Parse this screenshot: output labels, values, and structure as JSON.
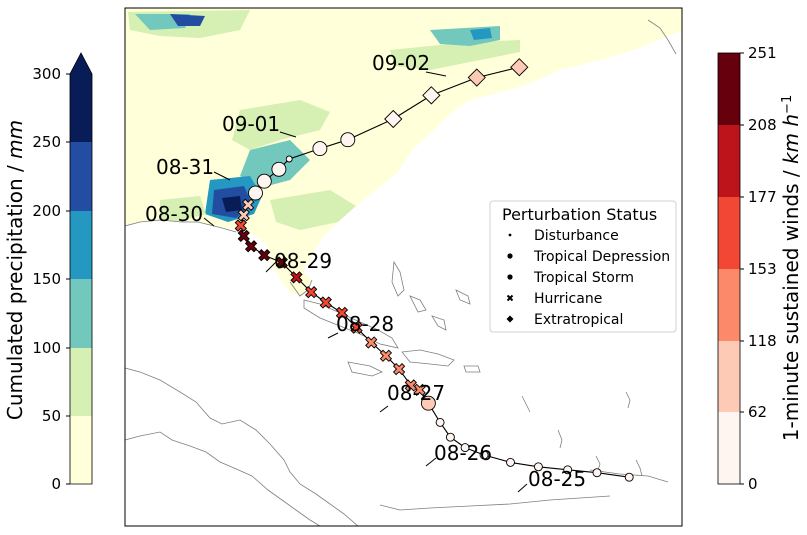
{
  "colors": {
    "precip": [
      "#ffffd9",
      "#d6efb3",
      "#73c8bd",
      "#2498c1",
      "#234da0",
      "#081d58"
    ],
    "wind": [
      "#fff5f0",
      "#fdcab5",
      "#fc8a6a",
      "#f24734",
      "#bc141a",
      "#67000d"
    ],
    "land": "#ffffd9",
    "ocean": "#ffffff",
    "track": "#000000"
  },
  "precip_colorbar": {
    "label": "Cumulated precipitation / mm",
    "label_plain": "Cumulated precipitation / ",
    "label_unit": "mm",
    "ticks": [
      "0",
      "50",
      "100",
      "150",
      "200",
      "250",
      "300"
    ],
    "bounds": [
      0,
      50,
      100,
      150,
      200,
      250,
      300
    ],
    "extend": "max"
  },
  "wind_colorbar": {
    "label": "1-minute sustained winds / km h^-1",
    "label_plain": "1-minute sustained winds / ",
    "label_unit_km": "km h",
    "label_unit_exp": "−1",
    "ticks": [
      "0",
      "62",
      "118",
      "153",
      "177",
      "208",
      "251"
    ],
    "bounds": [
      0,
      62,
      118,
      153,
      177,
      208,
      251
    ]
  },
  "legend": {
    "title": "Perturbation Status",
    "items": [
      {
        "label": "Disturbance",
        "marker": "small-dot"
      },
      {
        "label": "Tropical Depression",
        "marker": "dot"
      },
      {
        "label": "Tropical Storm",
        "marker": "dot"
      },
      {
        "label": "Hurricane",
        "marker": "x"
      },
      {
        "label": "Extratropical",
        "marker": "diamond"
      }
    ]
  },
  "date_labels": [
    "08-25",
    "08-26",
    "08-27",
    "08-28",
    "08-29",
    "08-30",
    "08-31",
    "09-01",
    "09-02"
  ],
  "track": [
    {
      "lon": -60.6,
      "lat": 13.3,
      "status": "Tropical Depression",
      "wind_kmh": 55
    },
    {
      "lon": -62.8,
      "lat": 13.6,
      "status": "Tropical Depression",
      "wind_kmh": 55
    },
    {
      "lon": -64.8,
      "lat": 13.8,
      "status": "Tropical Depression",
      "wind_kmh": 55
    },
    {
      "lon": -66.8,
      "lat": 14.0,
      "status": "Tropical Depression",
      "wind_kmh": 55
    },
    {
      "lon": -68.7,
      "lat": 14.3,
      "status": "Tropical Depression",
      "wind_kmh": 55
    },
    {
      "lon": -70.5,
      "lat": 14.8,
      "status": "Tropical Depression",
      "wind_kmh": 55
    },
    {
      "lon": -71.8,
      "lat": 15.3,
      "status": "Tropical Depression",
      "wind_kmh": 55
    },
    {
      "lon": -72.8,
      "lat": 16.0,
      "status": "Tropical Depression",
      "wind_kmh": 55
    },
    {
      "lon": -73.5,
      "lat": 17.0,
      "status": "Tropical Depression",
      "wind_kmh": 55
    },
    {
      "lon": -74.3,
      "lat": 18.3,
      "status": "Tropical Storm",
      "wind_kmh": 100
    },
    {
      "lon": -74.9,
      "lat": 19.2,
      "status": "Hurricane",
      "wind_kmh": 120
    },
    {
      "lon": -75.5,
      "lat": 19.5,
      "status": "Hurricane",
      "wind_kmh": 120
    },
    {
      "lon": -76.3,
      "lat": 20.6,
      "status": "Hurricane",
      "wind_kmh": 120
    },
    {
      "lon": -77.2,
      "lat": 21.5,
      "status": "Hurricane",
      "wind_kmh": 140
    },
    {
      "lon": -78.2,
      "lat": 22.4,
      "status": "Hurricane",
      "wind_kmh": 140
    },
    {
      "lon": -79.2,
      "lat": 23.4,
      "status": "Hurricane",
      "wind_kmh": 160
    },
    {
      "lon": -80.2,
      "lat": 24.4,
      "status": "Hurricane",
      "wind_kmh": 160
    },
    {
      "lon": -81.3,
      "lat": 25.1,
      "status": "Hurricane",
      "wind_kmh": 170
    },
    {
      "lon": -82.3,
      "lat": 25.8,
      "status": "Hurricane",
      "wind_kmh": 170
    },
    {
      "lon": -83.3,
      "lat": 26.8,
      "status": "Hurricane",
      "wind_kmh": 180
    },
    {
      "lon": -84.3,
      "lat": 27.8,
      "status": "Hurricane",
      "wind_kmh": 220
    },
    {
      "lon": -85.5,
      "lat": 28.3,
      "status": "Hurricane",
      "wind_kmh": 230
    },
    {
      "lon": -86.4,
      "lat": 28.9,
      "status": "Hurricane",
      "wind_kmh": 250
    },
    {
      "lon": -86.9,
      "lat": 29.6,
      "status": "Hurricane",
      "wind_kmh": 240
    },
    {
      "lon": -87.1,
      "lat": 30.3,
      "status": "Hurricane",
      "wind_kmh": 160
    },
    {
      "lon": -86.9,
      "lat": 31.0,
      "status": "Hurricane",
      "wind_kmh": 110
    },
    {
      "lon": -86.6,
      "lat": 31.7,
      "status": "Hurricane",
      "wind_kmh": 80
    },
    {
      "lon": -86.1,
      "lat": 32.5,
      "status": "Tropical Storm",
      "wind_kmh": 60
    },
    {
      "lon": -85.5,
      "lat": 33.3,
      "status": "Tropical Storm",
      "wind_kmh": 55
    },
    {
      "lon": -84.5,
      "lat": 34.1,
      "status": "Tropical Storm",
      "wind_kmh": 50
    },
    {
      "lon": -83.8,
      "lat": 34.8,
      "status": "Disturbance",
      "wind_kmh": 45
    },
    {
      "lon": -81.7,
      "lat": 35.5,
      "status": "Tropical Storm",
      "wind_kmh": 50
    },
    {
      "lon": -79.8,
      "lat": 36.1,
      "status": "Tropical Storm",
      "wind_kmh": 50
    },
    {
      "lon": -76.7,
      "lat": 37.5,
      "status": "Extratropical",
      "wind_kmh": 40
    },
    {
      "lon": -74.1,
      "lat": 39.1,
      "status": "Extratropical",
      "wind_kmh": 40
    },
    {
      "lon": -71.0,
      "lat": 40.3,
      "status": "Extratropical",
      "wind_kmh": 70
    },
    {
      "lon": -68.1,
      "lat": 41.0,
      "status": "Extratropical",
      "wind_kmh": 70
    }
  ]
}
